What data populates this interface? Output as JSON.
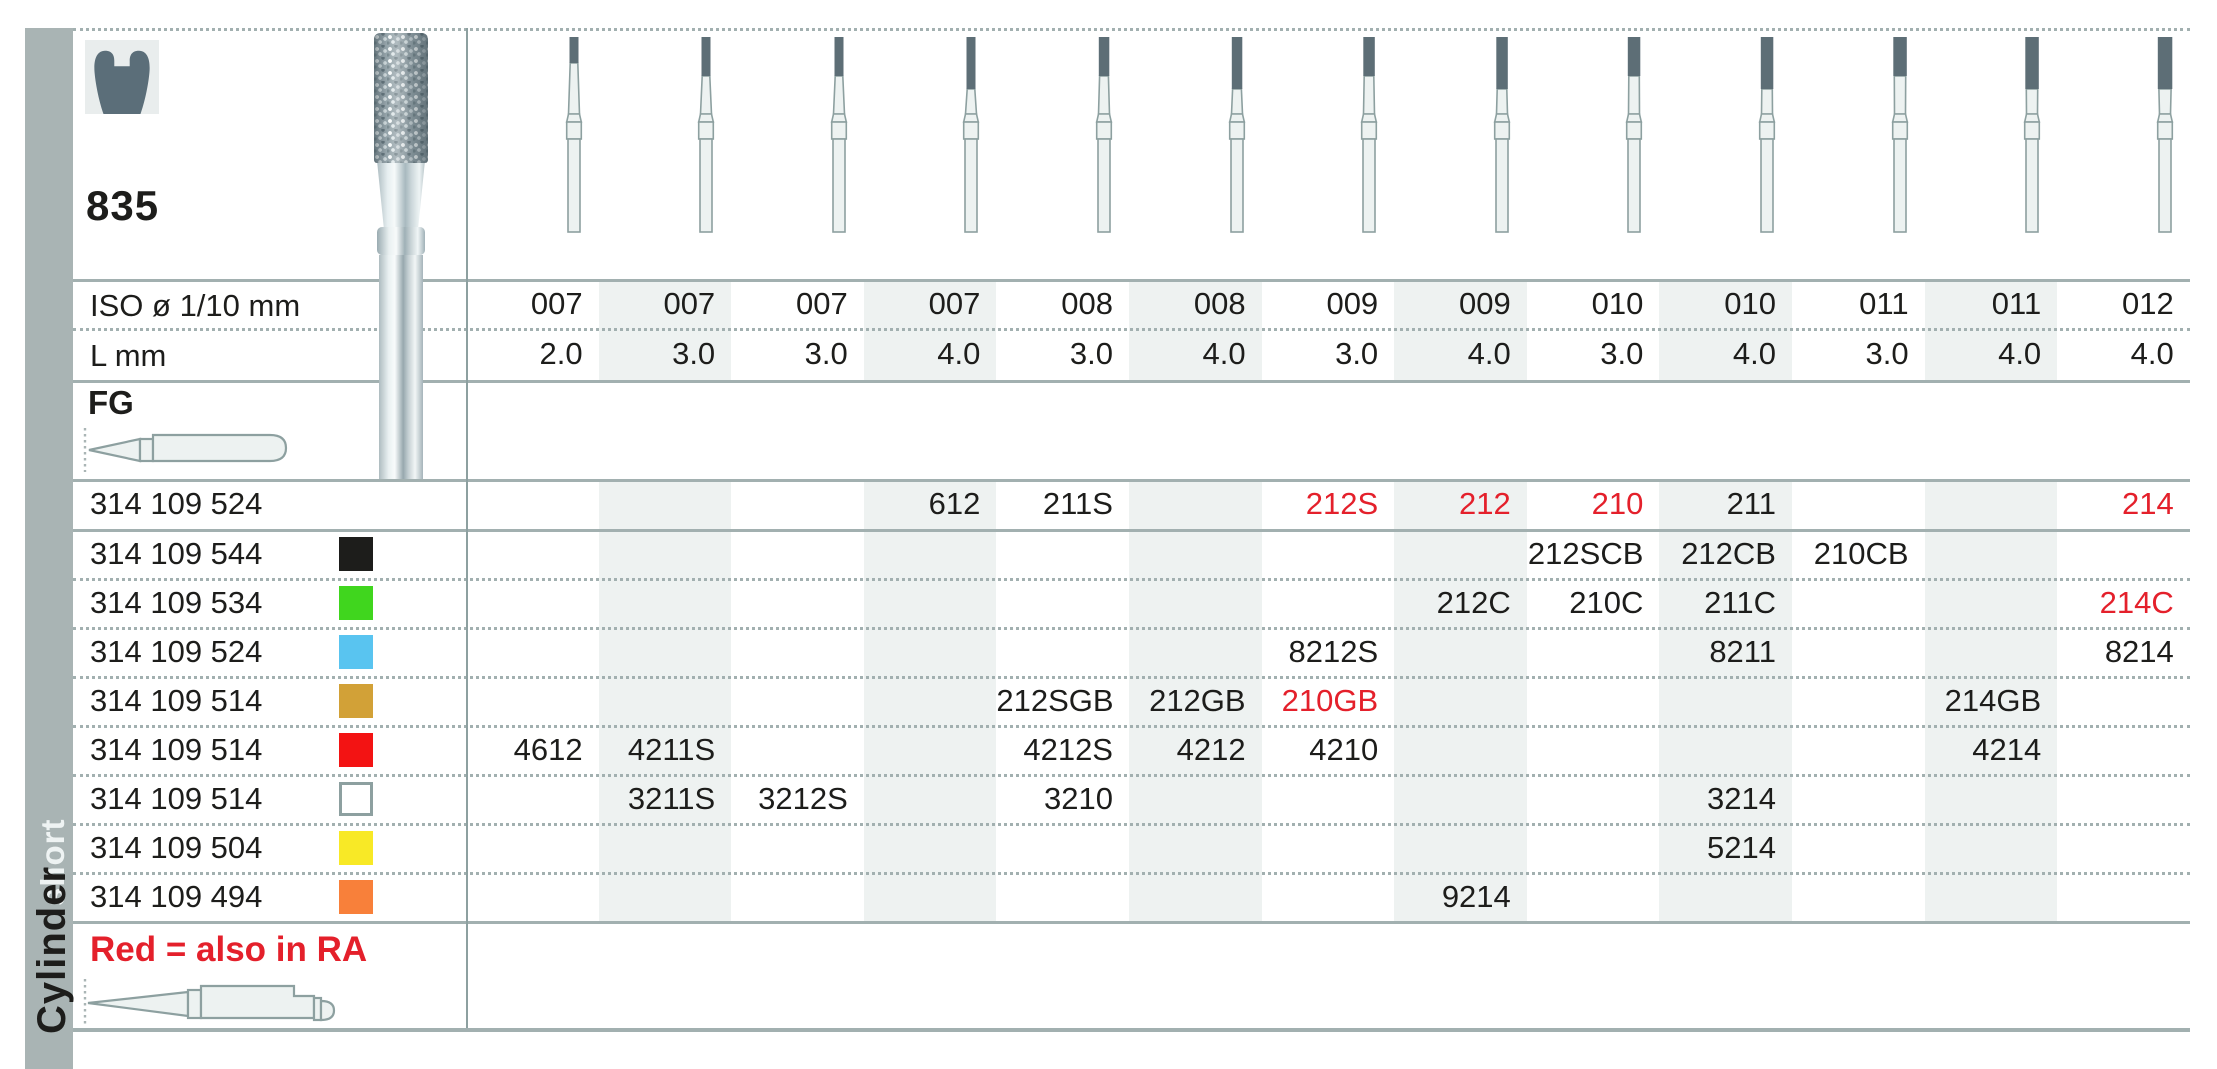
{
  "header": {
    "figure_number": "835"
  },
  "sidebar": {
    "primary": "Cylinder",
    "secondary": "short"
  },
  "table": {
    "iso_row_label": "ISO ø 1/10 mm",
    "l_row_label": "L mm",
    "shank_type_label": "FG",
    "footer_note": "Red = also in RA",
    "columns": [
      {
        "iso": "007",
        "l": "2.0"
      },
      {
        "iso": "007",
        "l": "3.0"
      },
      {
        "iso": "007",
        "l": "3.0"
      },
      {
        "iso": "007",
        "l": "4.0"
      },
      {
        "iso": "008",
        "l": "3.0"
      },
      {
        "iso": "008",
        "l": "4.0"
      },
      {
        "iso": "009",
        "l": "3.0"
      },
      {
        "iso": "009",
        "l": "4.0"
      },
      {
        "iso": "010",
        "l": "3.0"
      },
      {
        "iso": "010",
        "l": "4.0"
      },
      {
        "iso": "011",
        "l": "3.0"
      },
      {
        "iso": "011",
        "l": "4.0"
      },
      {
        "iso": "012",
        "l": "4.0"
      }
    ],
    "rows": [
      {
        "order_no": "314 109 524",
        "ring_color": null,
        "cells": [
          {
            "col": 4,
            "figure": "612"
          },
          {
            "col": 5,
            "figure": "211S"
          },
          {
            "col": 7,
            "figure": "212S",
            "red": true
          },
          {
            "col": 8,
            "figure": "212",
            "red": true
          },
          {
            "col": 9,
            "figure": "210",
            "red": true
          },
          {
            "col": 10,
            "figure": "211"
          },
          {
            "col": 13,
            "figure": "214",
            "red": true
          }
        ]
      },
      {
        "order_no": "314 109 544",
        "ring_color": "#1d1d1b",
        "cells": [
          {
            "col": 9,
            "figure": "212SCB"
          },
          {
            "col": 10,
            "figure": "212CB"
          },
          {
            "col": 11,
            "figure": "210CB"
          }
        ]
      },
      {
        "order_no": "314 109 534",
        "ring_color": "#40d61e",
        "cells": [
          {
            "col": 8,
            "figure": "212C"
          },
          {
            "col": 9,
            "figure": "210C"
          },
          {
            "col": 10,
            "figure": "211C"
          },
          {
            "col": 13,
            "figure": "214C",
            "red": true
          }
        ]
      },
      {
        "order_no": "314 109 524",
        "ring_color": "#59c4f0",
        "cells": [
          {
            "col": 7,
            "figure": "8212S"
          },
          {
            "col": 10,
            "figure": "8211"
          },
          {
            "col": 13,
            "figure": "8214"
          }
        ]
      },
      {
        "order_no": "314 109 514",
        "ring_color": "#d2a137",
        "cells": [
          {
            "col": 5,
            "figure": "212SGB"
          },
          {
            "col": 6,
            "figure": "212GB"
          },
          {
            "col": 7,
            "figure": "210GB",
            "red": true
          },
          {
            "col": 12,
            "figure": "214GB"
          }
        ]
      },
      {
        "order_no": "314 109 514",
        "ring_color": "#f31313",
        "cells": [
          {
            "col": 1,
            "figure": "4612"
          },
          {
            "col": 2,
            "figure": "4211S"
          },
          {
            "col": 5,
            "figure": "4212S"
          },
          {
            "col": 6,
            "figure": "4212"
          },
          {
            "col": 7,
            "figure": "4210"
          },
          {
            "col": 12,
            "figure": "4214"
          }
        ]
      },
      {
        "order_no": "314 109 514",
        "ring_color": "white",
        "cells": [
          {
            "col": 2,
            "figure": "3211S"
          },
          {
            "col": 3,
            "figure": "3212S"
          },
          {
            "col": 5,
            "figure": "3210"
          },
          {
            "col": 10,
            "figure": "3214"
          }
        ]
      },
      {
        "order_no": "314 109 504",
        "ring_color": "#f8e926",
        "cells": [
          {
            "col": 10,
            "figure": "5214"
          }
        ]
      },
      {
        "order_no": "314 109 494",
        "ring_color": "#f8803a",
        "cells": [
          {
            "col": 8,
            "figure": "9214"
          }
        ]
      }
    ]
  },
  "colors": {
    "accent_red": "#e4202b",
    "column_band": "#eef2f1",
    "grid_line": "#a2b0b0",
    "sidebar_gray": "#a9b4b4",
    "diagram_outline": "#8da0a0",
    "diagram_tip": "#5d6e76"
  }
}
